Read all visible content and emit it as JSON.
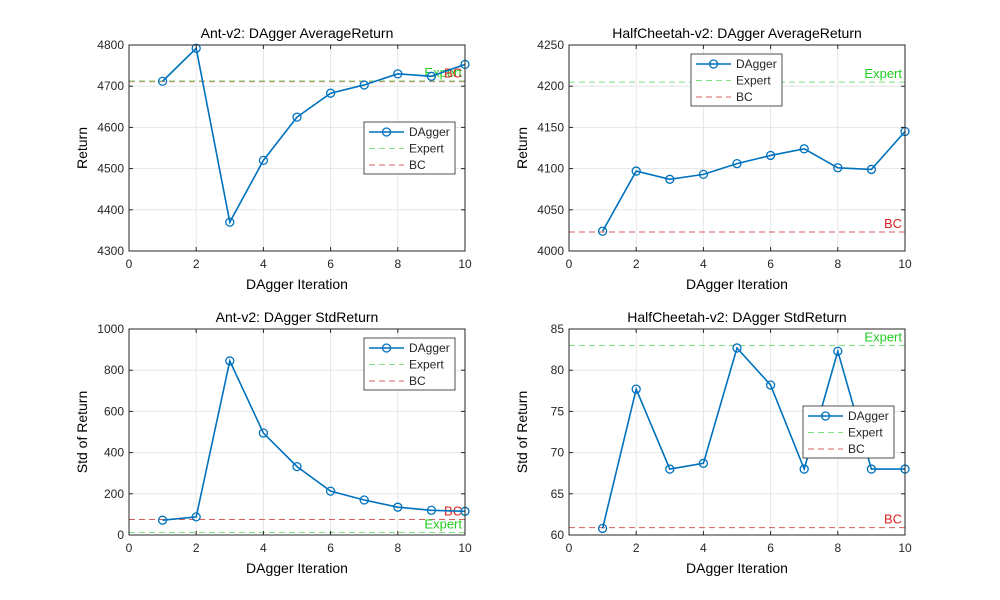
{
  "figure": {
    "background": "#ffffff",
    "axis_color": "#262626",
    "grid_color": "#e6e6e6"
  },
  "series_styles": {
    "dagger": {
      "color": "#0072BD",
      "marker": "circle"
    },
    "expert": {
      "color": "#7fe37f",
      "dash": "dashed"
    },
    "bc": {
      "color": "#d95f5f",
      "dash": "dashed"
    },
    "expert_label_color": "#22cc22",
    "bc_label_color": "#dd2222"
  },
  "chart_data": [
    {
      "id": "ant-avg",
      "type": "line",
      "title": "Ant-v2: DAgger AverageReturn",
      "xlabel": "DAgger Iteration",
      "ylabel": "Return",
      "xlim": [
        0,
        10
      ],
      "ylim": [
        4300,
        4800
      ],
      "xticks": [
        0,
        2,
        4,
        6,
        8,
        10
      ],
      "yticks": [
        4300,
        4400,
        4500,
        4600,
        4700,
        4800
      ],
      "grid": true,
      "legend": {
        "placement": "center-right",
        "entries": [
          "DAgger",
          "Expert",
          "BC"
        ]
      },
      "series": [
        {
          "name": "DAgger",
          "x": [
            1,
            2,
            3,
            4,
            5,
            6,
            7,
            8,
            9,
            10
          ],
          "y": [
            4712,
            4792,
            4370,
            4520,
            4625,
            4683,
            4703,
            4730,
            4724,
            4753
          ]
        }
      ],
      "reference_lines": [
        {
          "name": "Expert",
          "y": 4713,
          "label": "Expert"
        },
        {
          "name": "BC",
          "y": 4711,
          "label": "BC"
        }
      ]
    },
    {
      "id": "hc-avg",
      "type": "line",
      "title": "HalfCheetah-v2: DAgger AverageReturn",
      "xlabel": "DAgger Iteration",
      "ylabel": "Return",
      "xlim": [
        0,
        10
      ],
      "ylim": [
        4000,
        4250
      ],
      "xticks": [
        0,
        2,
        4,
        6,
        8,
        10
      ],
      "yticks": [
        4000,
        4050,
        4100,
        4150,
        4200,
        4250
      ],
      "grid": true,
      "legend": {
        "placement": "top-center",
        "entries": [
          "DAgger",
          "Expert",
          "BC"
        ]
      },
      "series": [
        {
          "name": "DAgger",
          "x": [
            1,
            2,
            3,
            4,
            5,
            6,
            7,
            8,
            9,
            10
          ],
          "y": [
            4024,
            4097,
            4087,
            4093,
            4106,
            4116,
            4124,
            4101,
            4099,
            4145
          ]
        }
      ],
      "reference_lines": [
        {
          "name": "Expert",
          "y": 4205,
          "label": "Expert"
        },
        {
          "name": "BC",
          "y": 4023,
          "label": "BC"
        }
      ]
    },
    {
      "id": "ant-std",
      "type": "line",
      "title": "Ant-v2: DAgger StdReturn",
      "xlabel": "DAgger Iteration",
      "ylabel": "Std of Return",
      "xlim": [
        0,
        10
      ],
      "ylim": [
        0,
        1000
      ],
      "xticks": [
        0,
        2,
        4,
        6,
        8,
        10
      ],
      "yticks": [
        0,
        200,
        400,
        600,
        800,
        1000
      ],
      "grid": true,
      "legend": {
        "placement": "top-right",
        "entries": [
          "DAgger",
          "Expert",
          "BC"
        ]
      },
      "series": [
        {
          "name": "DAgger",
          "x": [
            1,
            2,
            3,
            4,
            5,
            6,
            7,
            8,
            9,
            10
          ],
          "y": [
            72,
            88,
            845,
            495,
            332,
            213,
            170,
            135,
            120,
            115
          ]
        }
      ],
      "reference_lines": [
        {
          "name": "Expert",
          "y": 12,
          "label": "Expert"
        },
        {
          "name": "BC",
          "y": 75,
          "label": "BC"
        }
      ]
    },
    {
      "id": "hc-std",
      "type": "line",
      "title": "HalfCheetah-v2: DAgger StdReturn",
      "xlabel": "DAgger Iteration",
      "ylabel": "Std of Return",
      "xlim": [
        0,
        10
      ],
      "ylim": [
        60,
        85
      ],
      "xticks": [
        0,
        2,
        4,
        6,
        8,
        10
      ],
      "yticks": [
        60,
        65,
        70,
        75,
        80,
        85
      ],
      "grid": true,
      "legend": {
        "placement": "center-right",
        "entries": [
          "DAgger",
          "Expert",
          "BC"
        ]
      },
      "series": [
        {
          "name": "DAgger",
          "x": [
            1,
            2,
            3,
            4,
            5,
            6,
            7,
            8,
            9,
            10
          ],
          "y": [
            60.8,
            77.7,
            68.0,
            68.7,
            82.7,
            78.2,
            68.0,
            82.3,
            68.0,
            68.0
          ]
        }
      ],
      "reference_lines": [
        {
          "name": "Expert",
          "y": 83.0,
          "label": "Expert"
        },
        {
          "name": "BC",
          "y": 60.9,
          "label": "BC"
        }
      ]
    }
  ]
}
